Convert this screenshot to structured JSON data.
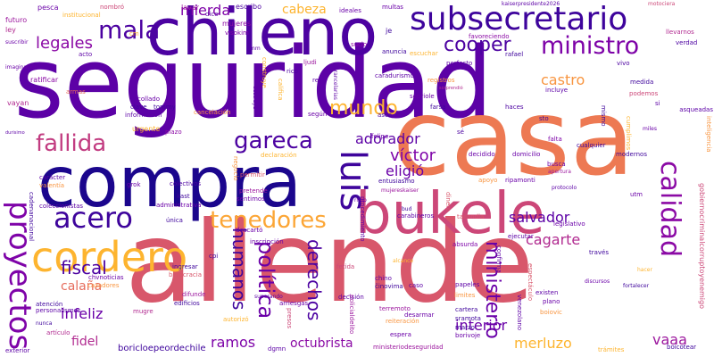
{
  "words": [
    {
      "text": "seguridad",
      "color": "#5c01a6",
      "vertical": false
    },
    {
      "text": "allende",
      "color": "#d8576b",
      "vertical": false
    },
    {
      "text": "casa",
      "color": "#ed7953",
      "vertical": false
    },
    {
      "text": "compra",
      "color": "#1b068d",
      "vertical": false
    },
    {
      "text": "chileno",
      "color": "#4c02a1",
      "vertical": false
    },
    {
      "text": "bukele",
      "color": "#cc4778",
      "vertical": false
    },
    {
      "text": "subsecretario",
      "color": "#3e049c",
      "vertical": false
    },
    {
      "text": "mala",
      "color": "#4c02a1",
      "vertical": false
    },
    {
      "text": "ministro",
      "color": "#7e03a8",
      "vertical": false
    },
    {
      "text": "cordero",
      "color": "#fdb42f",
      "vertical": false
    },
    {
      "text": "fallida",
      "color": "#c23c81",
      "vertical": false
    },
    {
      "text": "gareca",
      "color": "#4c02a1",
      "vertical": false
    },
    {
      "text": "luis",
      "color": "#3e049c",
      "vertical": true
    },
    {
      "text": "calidad",
      "color": "#8b0aa5",
      "vertical": true
    },
    {
      "text": "proyectos",
      "color": "#7e03a8",
      "vertical": true
    },
    {
      "text": "acero",
      "color": "#3e049c",
      "vertical": false
    },
    {
      "text": "tenedores",
      "color": "#fca636",
      "vertical": false
    },
    {
      "text": "legales",
      "color": "#8b0aa5",
      "vertical": false
    },
    {
      "text": "cooper",
      "color": "#4c02a1",
      "vertical": false
    },
    {
      "text": "mundo",
      "color": "#fdb42f",
      "vertical": false
    },
    {
      "text": "adorador",
      "color": "#5c01a6",
      "vertical": false
    },
    {
      "text": "castro",
      "color": "#f89540",
      "vertical": false
    },
    {
      "text": "mierda",
      "color": "#7e03a8",
      "vertical": false
    },
    {
      "text": "cabeza",
      "color": "#fdb42f",
      "vertical": false
    },
    {
      "text": "salvador",
      "color": "#5c01a6",
      "vertical": false
    },
    {
      "text": "cagarte",
      "color": "#b12a90",
      "vertical": false
    },
    {
      "text": "humanos",
      "color": "#3e049c",
      "vertical": true
    },
    {
      "text": "política",
      "color": "#6a00a8",
      "vertical": true
    },
    {
      "text": "derechos",
      "color": "#4c02a1",
      "vertical": true
    },
    {
      "text": "ministerio",
      "color": "#6a00a8",
      "vertical": true
    },
    {
      "text": "víctor",
      "color": "#7e03a8",
      "vertical": false
    },
    {
      "text": "eligió",
      "color": "#6a00a8",
      "vertical": false
    },
    {
      "text": "fiscal",
      "color": "#4c02a1",
      "vertical": false
    },
    {
      "text": "calaña",
      "color": "#e66c5c",
      "vertical": false
    },
    {
      "text": "infeliz",
      "color": "#6a00a8",
      "vertical": false
    },
    {
      "text": "fidel",
      "color": "#b12a90",
      "vertical": false
    },
    {
      "text": "ramos",
      "color": "#7e03a8",
      "vertical": false
    },
    {
      "text": "octubrista",
      "color": "#8b0aa5",
      "vertical": false
    },
    {
      "text": "interior",
      "color": "#6a00a8",
      "vertical": false
    },
    {
      "text": "merluzo",
      "color": "#fdb42f",
      "vertical": false
    },
    {
      "text": "vaaa",
      "color": "#9c179e",
      "vertical": false
    },
    {
      "text": "boricloepeordechile",
      "color": "#3e049c",
      "vertical": false
    },
    {
      "text": "pesca",
      "color": "#6a00a8",
      "vertical": false
    },
    {
      "text": "institucional",
      "color": "#fdb42f",
      "vertical": false
    },
    {
      "text": "nombró",
      "color": "#cc4778",
      "vertical": false
    },
    {
      "text": "lavar",
      "color": "#9c179e",
      "vertical": false
    },
    {
      "text": "dice",
      "color": "#5c01a6",
      "vertical": false
    },
    {
      "text": "mujeres",
      "color": "#8b0aa5",
      "vertical": false
    },
    {
      "text": "escribo",
      "color": "#4c02a1",
      "vertical": false
    },
    {
      "text": "ideales",
      "color": "#6a00a8",
      "vertical": false
    },
    {
      "text": "multas",
      "color": "#6a00a8",
      "vertical": false
    },
    {
      "text": "kaiserpresidente2026",
      "color": "#5c01a6",
      "vertical": false
    },
    {
      "text": "motociera",
      "color": "#cc4778",
      "vertical": false
    },
    {
      "text": "futuro",
      "color": "#9c179e",
      "vertical": false
    },
    {
      "text": "ley",
      "color": "#b12a90",
      "vertical": false
    },
    {
      "text": "visokim",
      "color": "#7e03a8",
      "vertical": false
    },
    {
      "text": "je",
      "color": "#3e049c",
      "vertical": false
    },
    {
      "text": "favoreciendo",
      "color": "#8b0aa5",
      "vertical": false
    },
    {
      "text": "llevarnos",
      "color": "#b12a90",
      "vertical": false
    },
    {
      "text": "verdad",
      "color": "#4c02a1",
      "vertical": false
    },
    {
      "text": "acto",
      "color": "#5c01a6",
      "vertical": false
    },
    {
      "text": "sucio",
      "color": "#8b0aa5",
      "vertical": false
    },
    {
      "text": "anuncia",
      "color": "#3e049c",
      "vertical": false
    },
    {
      "text": "escuchar",
      "color": "#fdb42f",
      "vertical": false
    },
    {
      "text": "rafael",
      "color": "#3e049c",
      "vertical": false
    },
    {
      "text": "vivo",
      "color": "#4c02a1",
      "vertical": false
    },
    {
      "text": "perfecto",
      "color": "#5c01a6",
      "vertical": false
    },
    {
      "text": "imaginación",
      "color": "#6a00a8",
      "vertical": false
    },
    {
      "text": "ratificar",
      "color": "#8b0aa5",
      "vertical": false
    },
    {
      "text": "armas",
      "color": "#e66c5c",
      "vertical": false
    },
    {
      "text": "rico",
      "color": "#4c02a1",
      "vertical": false
    },
    {
      "text": "ljudi",
      "color": "#9c179e",
      "vertical": false
    },
    {
      "text": "rey",
      "color": "#5c01a6",
      "vertical": false
    },
    {
      "text": "caradurismo",
      "color": "#5c01a6",
      "vertical": false
    },
    {
      "text": "registros",
      "color": "#f89540",
      "vertical": false
    },
    {
      "text": "sorprendió",
      "color": "#b12a90",
      "vertical": false
    },
    {
      "text": "sopriole",
      "color": "#6a00a8",
      "vertical": false
    },
    {
      "text": "medida",
      "color": "#3e049c",
      "vertical": false
    },
    {
      "text": "podemos",
      "color": "#cc4778",
      "vertical": false
    },
    {
      "text": "incluye",
      "color": "#5c01a6",
      "vertical": false
    },
    {
      "text": "collado",
      "color": "#6a00a8",
      "vertical": false
    },
    {
      "text": "clave",
      "color": "#3e049c",
      "vertical": false
    },
    {
      "text": "vayan",
      "color": "#b12a90",
      "vertical": false
    },
    {
      "text": "tommy",
      "color": "#3e049c",
      "vertical": false
    },
    {
      "text": "información",
      "color": "#5c01a6",
      "vertical": false
    },
    {
      "text": "cancelación",
      "color": "#f89540",
      "vertical": false
    },
    {
      "text": "según",
      "color": "#6a00a8",
      "vertical": false
    },
    {
      "text": "asco",
      "color": "#4c02a1",
      "vertical": false
    },
    {
      "text": "farsa",
      "color": "#3e049c",
      "vertical": false
    },
    {
      "text": "haces",
      "color": "#4c02a1",
      "vertical": false
    },
    {
      "text": "sto",
      "color": "#3e049c",
      "vertical": false
    },
    {
      "text": "durisimo",
      "color": "#5c01a6",
      "vertical": false
    },
    {
      "text": "urgente",
      "color": "#fdb42f",
      "vertical": false
    },
    {
      "text": "plazo",
      "color": "#8b0aa5",
      "vertical": false
    },
    {
      "text": "declaración",
      "color": "#fdb42f",
      "vertical": false
    },
    {
      "text": "felipe",
      "color": "#6a00a8",
      "vertical": false
    },
    {
      "text": "falta",
      "color": "#7e03a8",
      "vertical": false
    },
    {
      "text": "cualquier",
      "color": "#3e049c",
      "vertical": false
    },
    {
      "text": "asqueadas",
      "color": "#5c01a6",
      "vertical": false
    },
    {
      "text": "carácter",
      "color": "#5c01a6",
      "vertical": false
    },
    {
      "text": "valentía",
      "color": "#f89540",
      "vertical": false
    },
    {
      "text": "grok",
      "color": "#6a00a8",
      "vertical": false
    },
    {
      "text": "decidido",
      "color": "#6a00a8",
      "vertical": false
    },
    {
      "text": "domicilio",
      "color": "#6a00a8",
      "vertical": false
    },
    {
      "text": "busca",
      "color": "#6a00a8",
      "vertical": false
    },
    {
      "text": "modernos",
      "color": "#3e049c",
      "vertical": false
    },
    {
      "text": "permitir",
      "color": "#d8576b",
      "vertical": false
    },
    {
      "text": "colectivos",
      "color": "#4c02a1",
      "vertical": false
    },
    {
      "text": "entusiasmo",
      "color": "#3e049c",
      "vertical": false
    },
    {
      "text": "apoyo",
      "color": "#f89540",
      "vertical": false
    },
    {
      "text": "ripamonti",
      "color": "#6a00a8",
      "vertical": false
    },
    {
      "text": "pretende",
      "color": "#9c179e",
      "vertical": false
    },
    {
      "text": "sentimos",
      "color": "#6a00a8",
      "vertical": false
    },
    {
      "text": "kast",
      "color": "#3e049c",
      "vertical": false
    },
    {
      "text": "coleccionistas",
      "color": "#5c01a6",
      "vertical": false
    },
    {
      "text": "administrativa",
      "color": "#6a00a8",
      "vertical": false
    },
    {
      "text": "mujereskaiser",
      "color": "#9c179e",
      "vertical": false
    },
    {
      "text": "legislativo",
      "color": "#6a00a8",
      "vertical": false
    },
    {
      "text": "descartó",
      "color": "#6a00a8",
      "vertical": false
    },
    {
      "text": "carabineros",
      "color": "#5c01a6",
      "vertical": false
    },
    {
      "text": "tailandia",
      "color": "#d8576b",
      "vertical": false
    },
    {
      "text": "ejecutar",
      "color": "#5c01a6",
      "vertical": false
    },
    {
      "text": "inscripción",
      "color": "#6a00a8",
      "vertical": false
    },
    {
      "text": "absurda",
      "color": "#7e03a8",
      "vertical": false
    },
    {
      "text": "través",
      "color": "#3e049c",
      "vertical": false
    },
    {
      "text": "chvnoticias",
      "color": "#6a00a8",
      "vertical": false
    },
    {
      "text": "ingresar",
      "color": "#3e049c",
      "vertical": false
    },
    {
      "text": "burocracia",
      "color": "#d8576b",
      "vertical": false
    },
    {
      "text": "cpi",
      "color": "#3e049c",
      "vertical": false
    },
    {
      "text": "cazadores",
      "color": "#f89540",
      "vertical": false
    },
    {
      "text": "difunde",
      "color": "#9c179e",
      "vertical": false
    },
    {
      "text": "edificios",
      "color": "#3e049c",
      "vertical": false
    },
    {
      "text": "atención",
      "color": "#3e049c",
      "vertical": false
    },
    {
      "text": "personalismos",
      "color": "#5c01a6",
      "vertical": false
    },
    {
      "text": "mugre",
      "color": "#b12a90",
      "vertical": false
    },
    {
      "text": "arriesgas",
      "color": "#6a00a8",
      "vertical": false
    },
    {
      "text": "superando",
      "color": "#5c01a6",
      "vertical": false
    },
    {
      "text": "decisión",
      "color": "#5c01a6",
      "vertical": false
    },
    {
      "text": "caso",
      "color": "#5c01a6",
      "vertical": false
    },
    {
      "text": "papeles",
      "color": "#5c01a6",
      "vertical": false
    },
    {
      "text": "limites",
      "color": "#f89540",
      "vertical": false
    },
    {
      "text": "chino",
      "color": "#5c01a6",
      "vertical": false
    },
    {
      "text": "činovima",
      "color": "#3e049c",
      "vertical": false
    },
    {
      "text": "existen",
      "color": "#5c01a6",
      "vertical": false
    },
    {
      "text": "plano",
      "color": "#6a00a8",
      "vertical": false
    },
    {
      "text": "boiovic",
      "color": "#f89540",
      "vertical": false
    },
    {
      "text": "terremoto",
      "color": "#9c179e",
      "vertical": false
    },
    {
      "text": "desarmar",
      "color": "#6a00a8",
      "vertical": false
    },
    {
      "text": "cartera",
      "color": "#3e049c",
      "vertical": false
    },
    {
      "text": "sramota",
      "color": "#3e049c",
      "vertical": false
    },
    {
      "text": "marzo",
      "color": "#3e049c",
      "vertical": false
    },
    {
      "text": "borivoje",
      "color": "#6a00a8",
      "vertical": false
    },
    {
      "text": "fortalecer",
      "color": "#3e049c",
      "vertical": false
    },
    {
      "text": "reiteración",
      "color": "#f89540",
      "vertical": false
    },
    {
      "text": "espera",
      "color": "#6a00a8",
      "vertical": false
    },
    {
      "text": "trámites",
      "color": "#fdb42f",
      "vertical": false
    },
    {
      "text": "boicotear",
      "color": "#3e049c",
      "vertical": false
    },
    {
      "text": "ministeriodeseguridad",
      "color": "#9c179e",
      "vertical": false
    },
    {
      "text": "exterior",
      "color": "#5c01a6",
      "vertical": false
    },
    {
      "text": "dgmn",
      "color": "#5c01a6",
      "vertical": false
    },
    {
      "text": "artículo",
      "color": "#b12a90",
      "vertical": false
    },
    {
      "text": "nunca",
      "color": "#3e049c",
      "vertical": false
    },
    {
      "text": "única",
      "color": "#3e049c",
      "vertical": false
    },
    {
      "text": "autorizó",
      "color": "#fdb42f",
      "vertical": false
    },
    {
      "text": "gobiernocriminalcorruptoyenemigo",
      "color": "#cc4778",
      "vertical": true
    },
    {
      "text": "construye",
      "color": "#fdb42f",
      "vertical": true
    },
    {
      "text": "procedimiento",
      "color": "#5c01a6",
      "vertical": true
    },
    {
      "text": "espectáculo",
      "color": "#d8576b",
      "vertical": true
    },
    {
      "text": "cadenanacional",
      "color": "#3e049c",
      "vertical": true
    },
    {
      "text": "policialdelito",
      "color": "#9c179e",
      "vertical": true
    },
    {
      "text": "presos",
      "color": "#cc4778",
      "vertical": true
    },
    {
      "text": "venezolano",
      "color": "#5c01a6",
      "vertical": true
    },
    {
      "text": "confirma",
      "color": "#5c01a6",
      "vertical": true
    },
    {
      "text": "dinero",
      "color": "#d8576b",
      "vertical": true
    },
    {
      "text": "negocio",
      "color": "#f89540",
      "vertical": true
    },
    {
      "text": "califica",
      "color": "#fdb42f",
      "vertical": true
    },
    {
      "text": "arancelarias",
      "color": "#5c01a6",
      "vertical": true
    },
    {
      "text": "destruye",
      "color": "#5c01a6",
      "vertical": true
    },
    {
      "text": "inteligencia",
      "color": "#f89540",
      "vertical": true
    },
    {
      "text": "mismo",
      "color": "#3e049c",
      "vertical": true
    },
    {
      "text": "cumplimos",
      "color": "#fdb42f",
      "vertical": true
    },
    {
      "text": "protocolo",
      "color": "#5c01a6",
      "vertical": false
    },
    {
      "text": "apertura",
      "color": "#9c179e",
      "vertical": false
    },
    {
      "text": "utm",
      "color": "#6a00a8",
      "vertical": false
    },
    {
      "text": "discursos",
      "color": "#6a00a8",
      "vertical": false
    },
    {
      "text": "hacer",
      "color": "#fdb42f",
      "vertical": false
    },
    {
      "text": "si",
      "color": "#5c01a6",
      "vertical": false
    },
    {
      "text": "miles",
      "color": "#6a00a8",
      "vertical": false
    },
    {
      "text": "alcance",
      "color": "#fdb42f",
      "vertical": false
    },
    {
      "text": "fetida",
      "color": "#cc4778",
      "vertical": false
    },
    {
      "text": "bud",
      "color": "#3e049c",
      "vertical": false
    },
    {
      "text": "rnup",
      "color": "#6a00a8",
      "vertical": false
    },
    {
      "text": "suscribir",
      "color": "#6a00a8",
      "vertical": false
    },
    {
      "text": "mm",
      "color": "#5c01a6",
      "vertical": false
    },
    {
      "text": "sé",
      "color": "#4c02a1",
      "vertical": false
    },
    {
      "text": "cm",
      "color": "#fdb42f",
      "vertical": false
    }
  ]
}
